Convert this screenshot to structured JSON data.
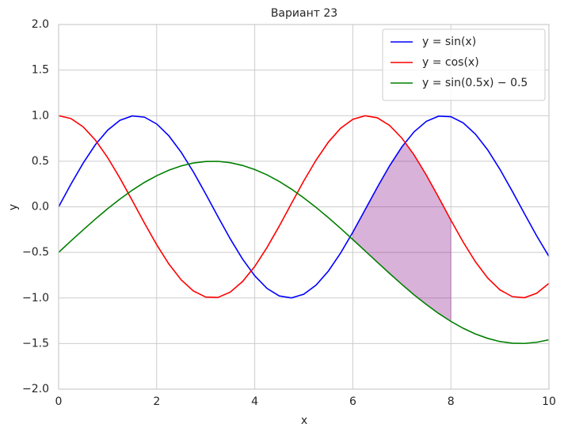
{
  "chart_data": {
    "type": "line",
    "title": "Вариант 23",
    "xlabel": "x",
    "ylabel": "y",
    "x": [
      0,
      0.25,
      0.5,
      0.75,
      1,
      1.25,
      1.5,
      1.75,
      2,
      2.25,
      2.5,
      2.75,
      3,
      3.25,
      3.5,
      3.75,
      4,
      4.25,
      4.5,
      4.75,
      5,
      5.25,
      5.5,
      5.75,
      6,
      6.25,
      6.5,
      6.75,
      7,
      7.25,
      7.5,
      7.75,
      8,
      8.25,
      8.5,
      8.75,
      9,
      9.25,
      9.5,
      9.75,
      10
    ],
    "series": [
      {
        "name": "y = sin(x)",
        "color": "#0000ff",
        "values": [
          0,
          0.247,
          0.479,
          0.682,
          0.841,
          0.949,
          0.997,
          0.984,
          0.909,
          0.778,
          0.598,
          0.382,
          0.141,
          -0.108,
          -0.351,
          -0.572,
          -0.757,
          -0.895,
          -0.978,
          -0.999,
          -0.959,
          -0.859,
          -0.706,
          -0.508,
          -0.279,
          -0.033,
          0.215,
          0.45,
          0.657,
          0.823,
          0.938,
          0.995,
          0.989,
          0.922,
          0.798,
          0.625,
          0.412,
          0.173,
          -0.075,
          -0.319,
          -0.544
        ]
      },
      {
        "name": "y = cos(x)",
        "color": "#ff0000",
        "values": [
          1,
          0.969,
          0.878,
          0.732,
          0.54,
          0.315,
          0.071,
          -0.178,
          -0.416,
          -0.628,
          -0.801,
          -0.924,
          -0.99,
          -0.994,
          -0.936,
          -0.82,
          -0.654,
          -0.446,
          -0.211,
          0.038,
          0.284,
          0.512,
          0.709,
          0.861,
          0.96,
          0.999,
          0.977,
          0.893,
          0.754,
          0.569,
          0.347,
          0.104,
          -0.146,
          -0.386,
          -0.602,
          -0.781,
          -0.911,
          -0.985,
          -0.997,
          -0.948,
          -0.839
        ]
      },
      {
        "name": "y = sin(0.5x) − 0.5",
        "color": "#008000",
        "values": [
          -0.5,
          -0.375,
          -0.253,
          -0.134,
          -0.021,
          0.085,
          0.182,
          0.268,
          0.341,
          0.402,
          0.449,
          0.481,
          0.497,
          0.499,
          0.484,
          0.454,
          0.409,
          0.351,
          0.278,
          0.194,
          0.098,
          -0.006,
          -0.118,
          -0.236,
          -0.359,
          -0.483,
          -0.608,
          -0.731,
          -0.851,
          -0.966,
          -1.072,
          -1.17,
          -1.257,
          -1.332,
          -1.395,
          -1.443,
          -1.478,
          -1.496,
          -1.499,
          -1.486,
          -1.459
        ]
      }
    ],
    "fill": {
      "color": "#800080",
      "alpha": 0.3,
      "x": [
        6,
        6.25,
        6.5,
        6.75,
        7,
        7.07,
        7.25,
        7.5,
        7.75,
        8
      ],
      "upper": [
        -0.279,
        -0.033,
        0.215,
        0.45,
        0.657,
        0.708,
        0.569,
        0.347,
        0.104,
        -0.146
      ],
      "lower": [
        -0.359,
        -0.483,
        -0.608,
        -0.731,
        -0.851,
        -0.883,
        -0.966,
        -1.072,
        -1.17,
        -1.257
      ]
    },
    "xlim": [
      0,
      10
    ],
    "xticks": [
      0,
      2,
      4,
      6,
      8,
      10
    ],
    "ylim": [
      -2,
      2
    ],
    "yticks": [
      {
        "value": -2,
        "label": "−2.0"
      },
      {
        "value": -1.5,
        "label": "−1.5"
      },
      {
        "value": -1,
        "label": "−1.0"
      },
      {
        "value": -0.5,
        "label": "−0.5"
      },
      {
        "value": 0,
        "label": "0.0"
      },
      0.5,
      {
        "value": 1,
        "label": "1.0"
      },
      1.5,
      {
        "value": 2,
        "label": "2.0"
      }
    ],
    "grid": true,
    "legend": "upper right"
  }
}
